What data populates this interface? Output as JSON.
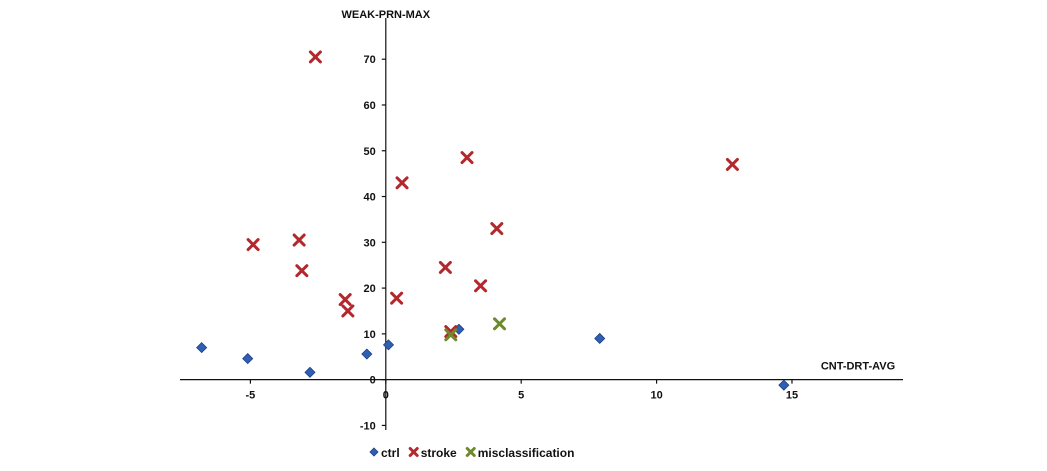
{
  "chart_data": {
    "type": "scatter",
    "xlabel": "CNT-DRT-AVG",
    "ylabel": "WEAK-PRN-MAX",
    "xlim": [
      -7.6,
      19.1
    ],
    "ylim": [
      -11,
      79
    ],
    "x_ticks": [
      -5,
      0,
      5,
      10,
      15
    ],
    "y_ticks": [
      -10,
      0,
      10,
      20,
      30,
      40,
      50,
      60,
      70
    ],
    "grid": false,
    "legend_position": "bottom-center",
    "series": [
      {
        "name": "ctrl",
        "marker": "diamond",
        "color": "#2f5fb3",
        "points": [
          {
            "x": -6.8,
            "y": 7
          },
          {
            "x": -5.1,
            "y": 4.6
          },
          {
            "x": -2.8,
            "y": 1.6
          },
          {
            "x": -0.7,
            "y": 5.6
          },
          {
            "x": 0.1,
            "y": 7.6
          },
          {
            "x": 2.7,
            "y": 11
          },
          {
            "x": 7.9,
            "y": 9
          },
          {
            "x": 14.7,
            "y": -1.2
          }
        ]
      },
      {
        "name": "stroke",
        "marker": "x",
        "color": "#b3282d",
        "points": [
          {
            "x": -2.6,
            "y": 70.5
          },
          {
            "x": -4.9,
            "y": 29.5
          },
          {
            "x": -3.2,
            "y": 30.5
          },
          {
            "x": -3.1,
            "y": 23.8
          },
          {
            "x": -1.5,
            "y": 17.5
          },
          {
            "x": -1.4,
            "y": 15
          },
          {
            "x": 0.4,
            "y": 17.8
          },
          {
            "x": 0.6,
            "y": 43
          },
          {
            "x": 2.2,
            "y": 24.5
          },
          {
            "x": 3.0,
            "y": 48.5
          },
          {
            "x": 3.5,
            "y": 20.5
          },
          {
            "x": 4.1,
            "y": 33
          },
          {
            "x": 12.8,
            "y": 47
          },
          {
            "x": 2.4,
            "y": 10.5
          }
        ]
      },
      {
        "name": "misclassification",
        "marker": "x",
        "color": "#6e8a2a",
        "points": [
          {
            "x": 2.4,
            "y": 9.8
          },
          {
            "x": 4.2,
            "y": 12.2
          }
        ]
      }
    ]
  }
}
